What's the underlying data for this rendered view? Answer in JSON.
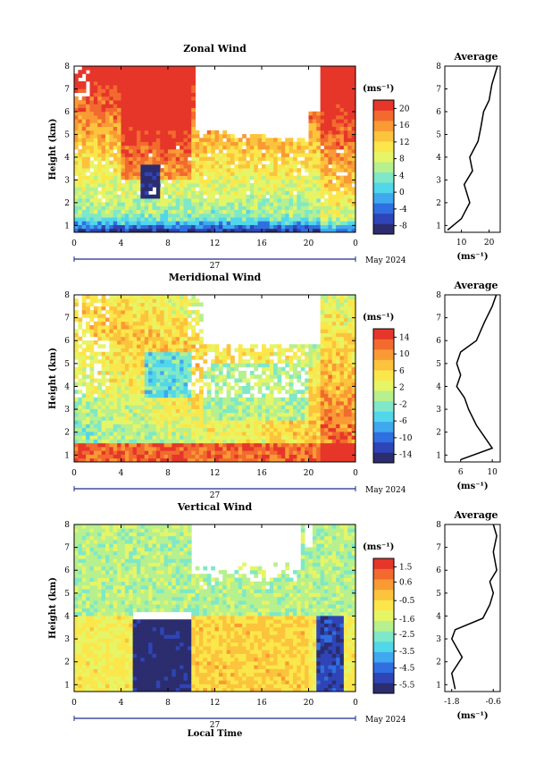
{
  "colors": {
    "wind_scale": [
      "#2b2d6e",
      "#2f44b6",
      "#2f6fe0",
      "#3fa8ef",
      "#52d6ea",
      "#7ee8c8",
      "#b6f08f",
      "#e6f566",
      "#fbe74b",
      "#fcc33c",
      "#f99a35",
      "#f26a2e",
      "#e6362a"
    ],
    "missing": "#ffffff",
    "axis": "#000000",
    "time_bar": "#1c2a8a"
  },
  "shared": {
    "height_ticks": [
      "1",
      "2",
      "3",
      "4",
      "5",
      "6",
      "7",
      "8"
    ],
    "time_ticks": [
      "0",
      "4",
      "8",
      "12",
      "16",
      "20",
      "0"
    ],
    "day_label": "27",
    "month_label": "May 2024",
    "ylabel": "Height (km)",
    "unit_label": "(ms⁻¹)",
    "xlabel": "Local Time",
    "avg_title": "Average"
  },
  "chart_data": [
    {
      "type": "heatmap",
      "title": "Zonal Wind",
      "x_ticks": [
        "0",
        "4",
        "8",
        "12",
        "16",
        "20",
        "0"
      ],
      "ylim": [
        0.7,
        8
      ],
      "colorbar": {
        "ticks": [
          "20",
          "16",
          "12",
          "8",
          "4",
          "0",
          "-4",
          "-8"
        ],
        "range": [
          -10,
          22
        ]
      },
      "profile": {
        "title": "Average",
        "x_ticks": [
          "10",
          "20"
        ],
        "xlim": [
          4,
          24
        ],
        "xlabel": "(ms⁻¹)",
        "y_ticks": [
          "1",
          "2",
          "3",
          "4",
          "5",
          "6",
          "7",
          "8"
        ],
        "points": [
          [
            5,
            0.8
          ],
          [
            10,
            1.3
          ],
          [
            13,
            2.0
          ],
          [
            11,
            2.8
          ],
          [
            14,
            3.4
          ],
          [
            13,
            4.0
          ],
          [
            16,
            4.7
          ],
          [
            17,
            5.3
          ],
          [
            18,
            6.0
          ],
          [
            20,
            6.5
          ],
          [
            21,
            7.2
          ],
          [
            23,
            8.0
          ]
        ]
      }
    },
    {
      "type": "heatmap",
      "title": "Meridional Wind",
      "x_ticks": [
        "0",
        "4",
        "8",
        "12",
        "16",
        "20",
        "0"
      ],
      "ylim": [
        0.7,
        8
      ],
      "colorbar": {
        "ticks": [
          "14",
          "10",
          "6",
          "2",
          "-2",
          "-6",
          "-10",
          "-14"
        ],
        "range": [
          -16,
          16
        ]
      },
      "profile": {
        "title": "Average",
        "x_ticks": [
          "6",
          "10"
        ],
        "xlim": [
          4,
          11
        ],
        "xlabel": "(ms⁻¹)",
        "y_ticks": [
          "1",
          "2",
          "3",
          "4",
          "5",
          "6",
          "7",
          "8"
        ],
        "points": [
          [
            6,
            0.8
          ],
          [
            10,
            1.3
          ],
          [
            9,
            1.8
          ],
          [
            8,
            2.3
          ],
          [
            7,
            3.0
          ],
          [
            6.5,
            3.5
          ],
          [
            5.5,
            4.0
          ],
          [
            6,
            4.5
          ],
          [
            5.5,
            5.0
          ],
          [
            6,
            5.5
          ],
          [
            8,
            6.0
          ],
          [
            9,
            6.8
          ],
          [
            10,
            7.5
          ],
          [
            10.5,
            8.0
          ]
        ]
      }
    },
    {
      "type": "heatmap",
      "title": "Vertical Wind",
      "x_ticks": [
        "0",
        "4",
        "8",
        "12",
        "16",
        "20",
        "0"
      ],
      "ylim": [
        0.7,
        8
      ],
      "colorbar": {
        "ticks": [
          "1.5",
          "0.6",
          "-0.5",
          "-1.6",
          "-2.5",
          "-3.5",
          "-4.5",
          "-5.5"
        ],
        "range": [
          -6,
          2
        ]
      },
      "profile": {
        "title": "Average",
        "x_ticks": [
          "-1.8",
          "-0.6"
        ],
        "xlim": [
          -2,
          -0.4
        ],
        "xlabel": "(ms⁻¹)",
        "y_ticks": [
          "1",
          "2",
          "3",
          "4",
          "5",
          "6",
          "7",
          "8"
        ],
        "points": [
          [
            -1.7,
            0.8
          ],
          [
            -1.8,
            1.5
          ],
          [
            -1.5,
            2.2
          ],
          [
            -1.8,
            3.0
          ],
          [
            -1.7,
            3.4
          ],
          [
            -0.9,
            3.9
          ],
          [
            -0.7,
            4.5
          ],
          [
            -0.6,
            5.0
          ],
          [
            -0.7,
            5.5
          ],
          [
            -0.5,
            6.0
          ],
          [
            -0.6,
            6.8
          ],
          [
            -0.5,
            7.5
          ],
          [
            -0.6,
            8.0
          ]
        ]
      }
    }
  ]
}
